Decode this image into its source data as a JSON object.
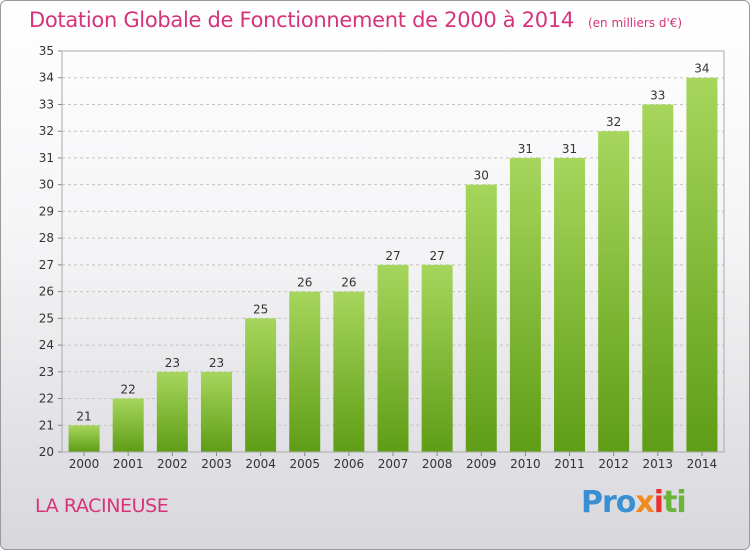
{
  "header": {
    "title": "Dotation Globale de Fonctionnement de 2000 à 2014",
    "unit": "(en milliers d'€)"
  },
  "footer": {
    "place": "LA RACINEUSE",
    "logo_parts": [
      "Pro",
      "x",
      "i",
      "ti"
    ]
  },
  "colors": {
    "title": "#d6337a",
    "bar_light": "#a6d65c",
    "bar_dark": "#5f9d16"
  },
  "chart_data": {
    "type": "bar",
    "title": "Dotation Globale de Fonctionnement de 2000 à 2014",
    "subtitle": "(en milliers d'€)",
    "xlabel": "",
    "ylabel": "",
    "categories": [
      "2000",
      "2001",
      "2002",
      "2003",
      "2004",
      "2005",
      "2006",
      "2007",
      "2008",
      "2009",
      "2010",
      "2011",
      "2012",
      "2013",
      "2014"
    ],
    "values": [
      21,
      22,
      23,
      23,
      25,
      26,
      26,
      27,
      27,
      30,
      31,
      31,
      32,
      33,
      34
    ],
    "ylim": [
      20,
      35
    ],
    "yticks": [
      20,
      21,
      22,
      23,
      24,
      25,
      26,
      27,
      28,
      29,
      30,
      31,
      32,
      33,
      34,
      35
    ],
    "grid": "horizontal-dashed",
    "data_labels": true
  }
}
